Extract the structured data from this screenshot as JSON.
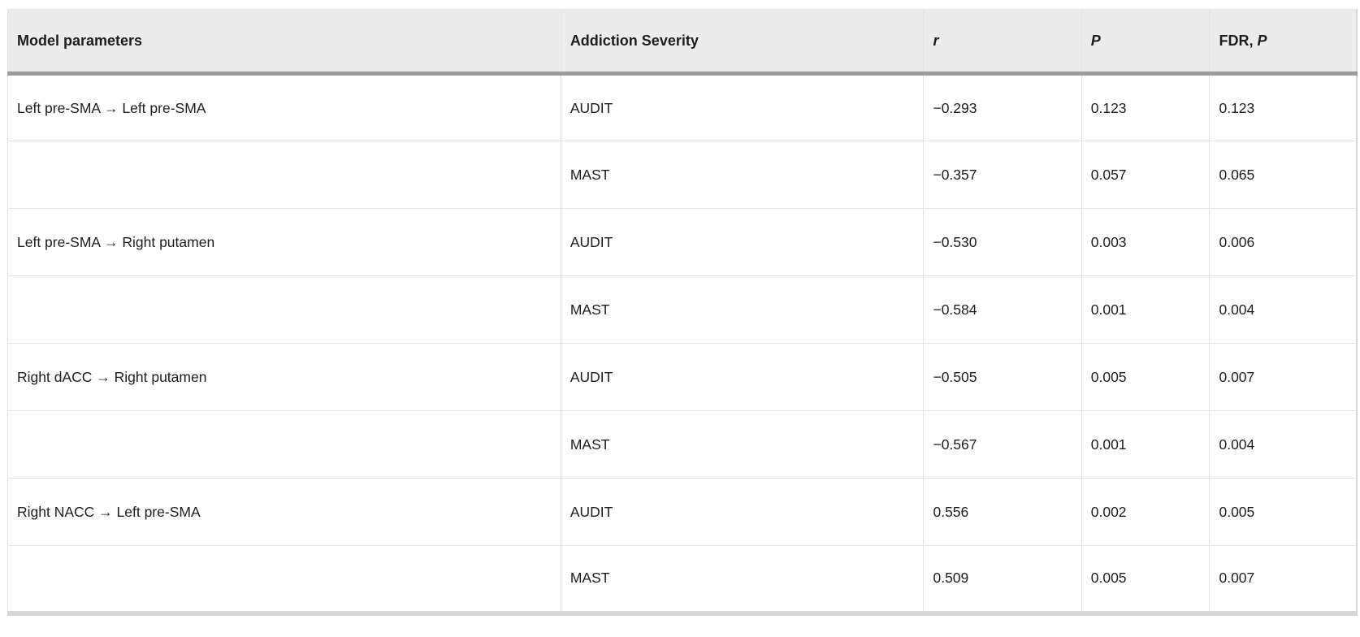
{
  "colors": {
    "page_background": "#ffffff",
    "header_background": "#ececec",
    "header_underline": "#9b9b9b",
    "grid_line": "#e3e3e3",
    "outer_border": "#d7d7d7",
    "text": "#1d1d1d"
  },
  "table": {
    "headers": {
      "model": "Model parameters",
      "severity": "Addiction Severity",
      "r": "r",
      "p": "P",
      "fdr_prefix": "FDR,",
      "fdr_italic": "P"
    },
    "rows": [
      {
        "model": "Left pre-SMA → Left pre-SMA",
        "severity": "AUDIT",
        "r": "−0.293",
        "p": "0.123",
        "fdr": "0.123"
      },
      {
        "model": "",
        "severity": "MAST",
        "r": "−0.357",
        "p": "0.057",
        "fdr": "0.065"
      },
      {
        "model": "Left pre-SMA → Right putamen",
        "severity": "AUDIT",
        "r": "−0.530",
        "p": "0.003",
        "fdr": "0.006"
      },
      {
        "model": "",
        "severity": "MAST",
        "r": "−0.584",
        "p": "0.001",
        "fdr": "0.004"
      },
      {
        "model": "Right dACC → Right putamen",
        "severity": "AUDIT",
        "r": "−0.505",
        "p": "0.005",
        "fdr": "0.007"
      },
      {
        "model": "",
        "severity": "MAST",
        "r": "−0.567",
        "p": "0.001",
        "fdr": "0.004"
      },
      {
        "model": "Right NACC → Left pre-SMA",
        "severity": "AUDIT",
        "r": "0.556",
        "p": "0.002",
        "fdr": "0.005"
      },
      {
        "model": "",
        "severity": "MAST",
        "r": "0.509",
        "p": "0.005",
        "fdr": "0.007"
      }
    ]
  }
}
